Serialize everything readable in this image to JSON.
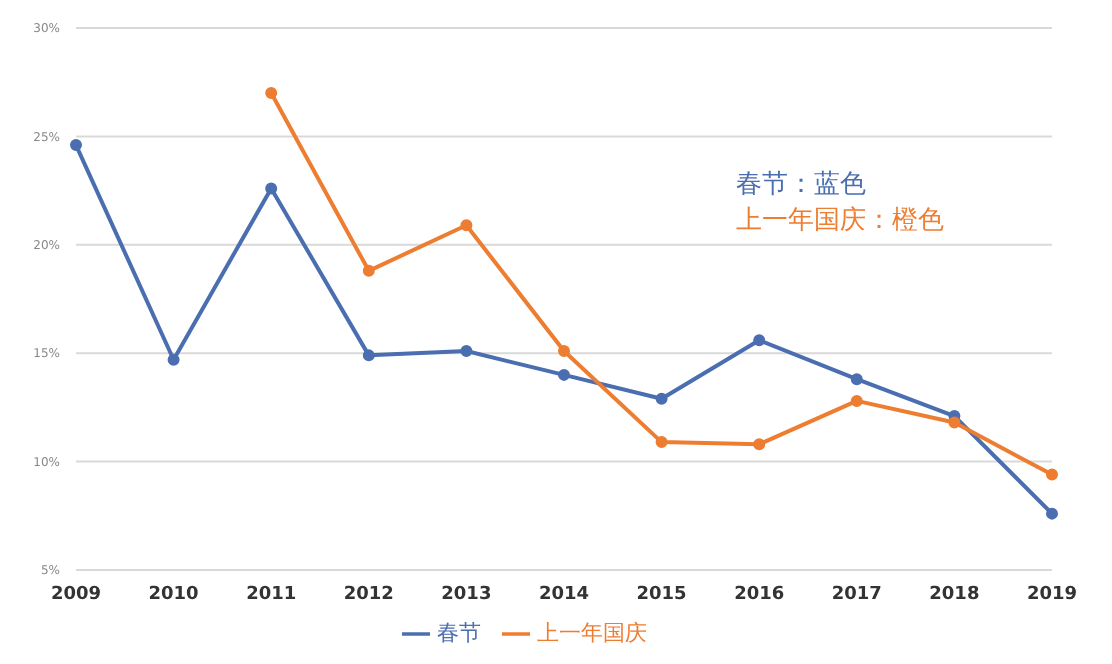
{
  "chart_data": {
    "type": "line",
    "categories": [
      "2009",
      "2010",
      "2011",
      "2012",
      "2013",
      "2014",
      "2015",
      "2016",
      "2017",
      "2018",
      "2019"
    ],
    "series": [
      {
        "name": "春节",
        "color": "#4a6eb0",
        "values": [
          24.6,
          14.7,
          22.6,
          14.9,
          15.1,
          14.0,
          12.9,
          15.6,
          13.8,
          12.1,
          7.6
        ]
      },
      {
        "name": "上一年国庆",
        "color": "#ed7d31",
        "values": [
          null,
          null,
          27.0,
          18.8,
          20.9,
          15.1,
          10.9,
          10.8,
          12.8,
          11.8,
          9.4
        ]
      }
    ],
    "ylim": [
      5,
      30
    ],
    "yticks": [
      {
        "value": 5,
        "label": "5%"
      },
      {
        "value": 10,
        "label": "10%"
      },
      {
        "value": 15,
        "label": "15%"
      },
      {
        "value": 20,
        "label": "20%"
      },
      {
        "value": 25,
        "label": "25%"
      },
      {
        "value": 30,
        "label": "30%"
      }
    ],
    "grid": "y",
    "legend": "bottom",
    "marker": "circle",
    "line_style": "solid",
    "annotations": [
      "春节：蓝色",
      "上一年国庆：橙色"
    ]
  }
}
